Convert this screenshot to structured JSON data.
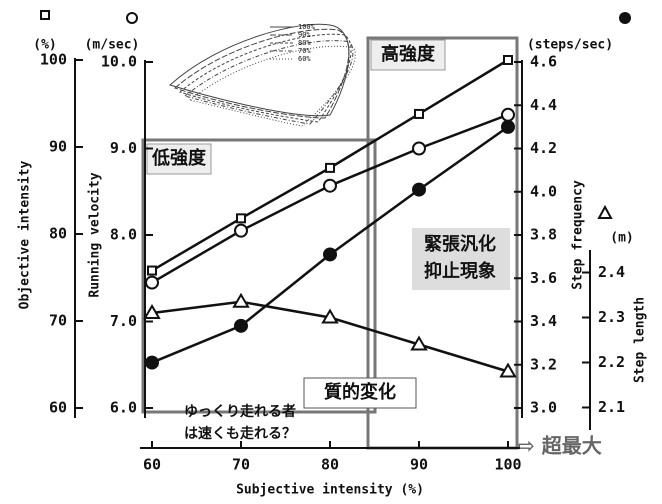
{
  "chart_data": {
    "type": "line",
    "xlabel": "Subjective intensity (%)",
    "x": [
      60,
      70,
      80,
      90,
      100
    ],
    "xlim": [
      60,
      100
    ],
    "xticks": [
      60,
      70,
      80,
      90,
      100
    ],
    "series": [
      {
        "name": "Objective intensity",
        "unit": "(%)",
        "marker": "square",
        "color": "#111",
        "values": [
          75.8,
          81.8,
          87.6,
          93.8,
          100
        ],
        "ylim": [
          60,
          100
        ],
        "yticks": [
          60,
          70,
          80,
          90,
          100
        ]
      },
      {
        "name": "Running velocity",
        "unit": "(m/sec)",
        "marker": "open-circle",
        "color": "#111",
        "values": [
          7.45,
          8.05,
          8.57,
          9.0,
          9.39
        ],
        "ylim": [
          6,
          10
        ],
        "yticks": [
          {
            "value": 6,
            "label": "6.0"
          },
          {
            "value": 7,
            "label": "7.0"
          },
          {
            "value": 8,
            "label": "8.0"
          },
          {
            "value": 9,
            "label": "9.0"
          },
          {
            "value": 10,
            "label": "10.0"
          }
        ]
      },
      {
        "name": "Step frequency",
        "unit": "(steps/sec)",
        "marker": "filled-circle",
        "color": "#111",
        "values": [
          3.21,
          3.38,
          3.71,
          4.01,
          4.3
        ],
        "ylim": [
          3,
          4.6
        ],
        "yticks": [
          {
            "value": 3,
            "label": "3.0"
          },
          3.2,
          3.4,
          3.6,
          3.8,
          {
            "value": 4,
            "label": "4.0"
          },
          4.2,
          4.4,
          4.6
        ]
      },
      {
        "name": "Step length",
        "unit": "(m)",
        "marker": "triangle",
        "color": "#111",
        "values": [
          2.31,
          2.335,
          2.3,
          2.24,
          2.18
        ],
        "ylim": [
          2.05,
          2.45
        ],
        "yticks": [
          2.1,
          2.2,
          2.3,
          2.4
        ]
      }
    ],
    "inset_legend": [
      "100%",
      "90%",
      "80%",
      "70%",
      "60%"
    ],
    "annotations": {
      "high": "高強度",
      "low": "低強度",
      "tension": [
        "緊張汎化",
        "抑止現象"
      ],
      "quality": "質的変化",
      "question": [
        "ゆっくり走れる者",
        "は速くも走れる？"
      ],
      "supramax": "⇨ 超最大"
    }
  }
}
